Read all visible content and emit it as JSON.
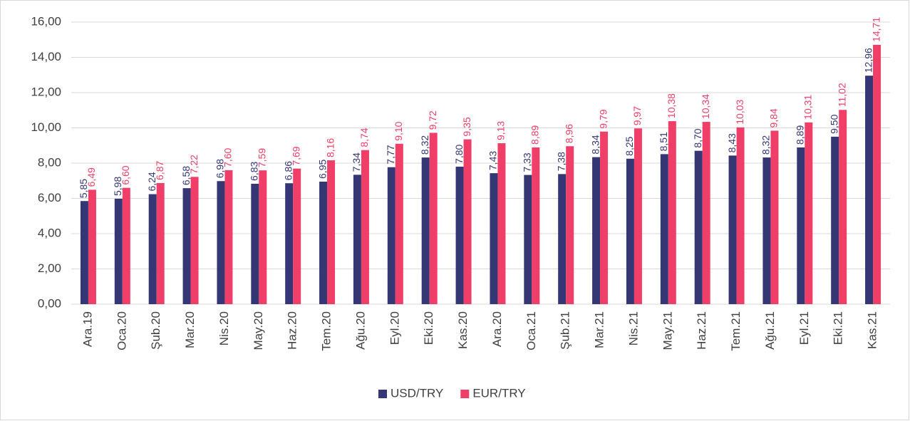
{
  "chart_data": {
    "type": "bar",
    "categories": [
      "Ara.19",
      "Oca.20",
      "Şub.20",
      "Mar.20",
      "Nis.20",
      "May.20",
      "Haz.20",
      "Tem.20",
      "Ağu.20",
      "Eyl.20",
      "Eki.20",
      "Kas.20",
      "Ara.20",
      "Oca.21",
      "Şub.21",
      "Mar.21",
      "Nis.21",
      "May.21",
      "Haz.21",
      "Tem.21",
      "Ağu.21",
      "Eyl.21",
      "Eki.21",
      "Kas.21"
    ],
    "series": [
      {
        "name": "USD/TRY",
        "color": "#353774",
        "values": [
          5.85,
          5.98,
          6.24,
          6.58,
          6.98,
          6.83,
          6.86,
          6.95,
          7.34,
          7.77,
          8.32,
          7.8,
          7.43,
          7.33,
          7.38,
          8.34,
          8.25,
          8.51,
          8.7,
          8.43,
          8.32,
          8.89,
          9.5,
          12.96
        ],
        "value_labels": [
          "5,85",
          "5,98",
          "6,24",
          "6,58",
          "6,98",
          "6,83",
          "6,86",
          "6,95",
          "7,34",
          "7,77",
          "8,32",
          "7,80",
          "7,43",
          "7,33",
          "7,38",
          "8,34",
          "8,25",
          "8,51",
          "8,70",
          "8,43",
          "8,32",
          "8,89",
          "9,50",
          "12,96"
        ]
      },
      {
        "name": "EUR/TRY",
        "color": "#ef3e68",
        "values": [
          6.49,
          6.6,
          6.87,
          7.22,
          7.6,
          7.59,
          7.69,
          8.16,
          8.74,
          9.1,
          9.72,
          9.35,
          9.13,
          8.89,
          8.96,
          9.79,
          9.97,
          10.38,
          10.34,
          10.03,
          9.84,
          10.31,
          11.02,
          14.71
        ],
        "value_labels": [
          "6,49",
          "6,60",
          "6,87",
          "7,22",
          "7,60",
          "7,59",
          "7,69",
          "8,16",
          "8,74",
          "9,10",
          "9,72",
          "9,35",
          "9,13",
          "8,89",
          "8,96",
          "9,79",
          "9,97",
          "10,38",
          "10,34",
          "10,03",
          "9,84",
          "10,31",
          "11,02",
          "14,71"
        ]
      }
    ],
    "ylim": [
      0,
      16
    ],
    "yticks": [
      {
        "value": 0,
        "label": "0,00"
      },
      {
        "value": 2,
        "label": "2,00"
      },
      {
        "value": 4,
        "label": "4,00"
      },
      {
        "value": 6,
        "label": "6,00"
      },
      {
        "value": 8,
        "label": "8,00"
      },
      {
        "value": 10,
        "label": "10,00"
      },
      {
        "value": 12,
        "label": "12,00"
      },
      {
        "value": 14,
        "label": "14,00"
      },
      {
        "value": 16,
        "label": "16,00"
      }
    ],
    "grid": true,
    "legend": "bottom"
  }
}
